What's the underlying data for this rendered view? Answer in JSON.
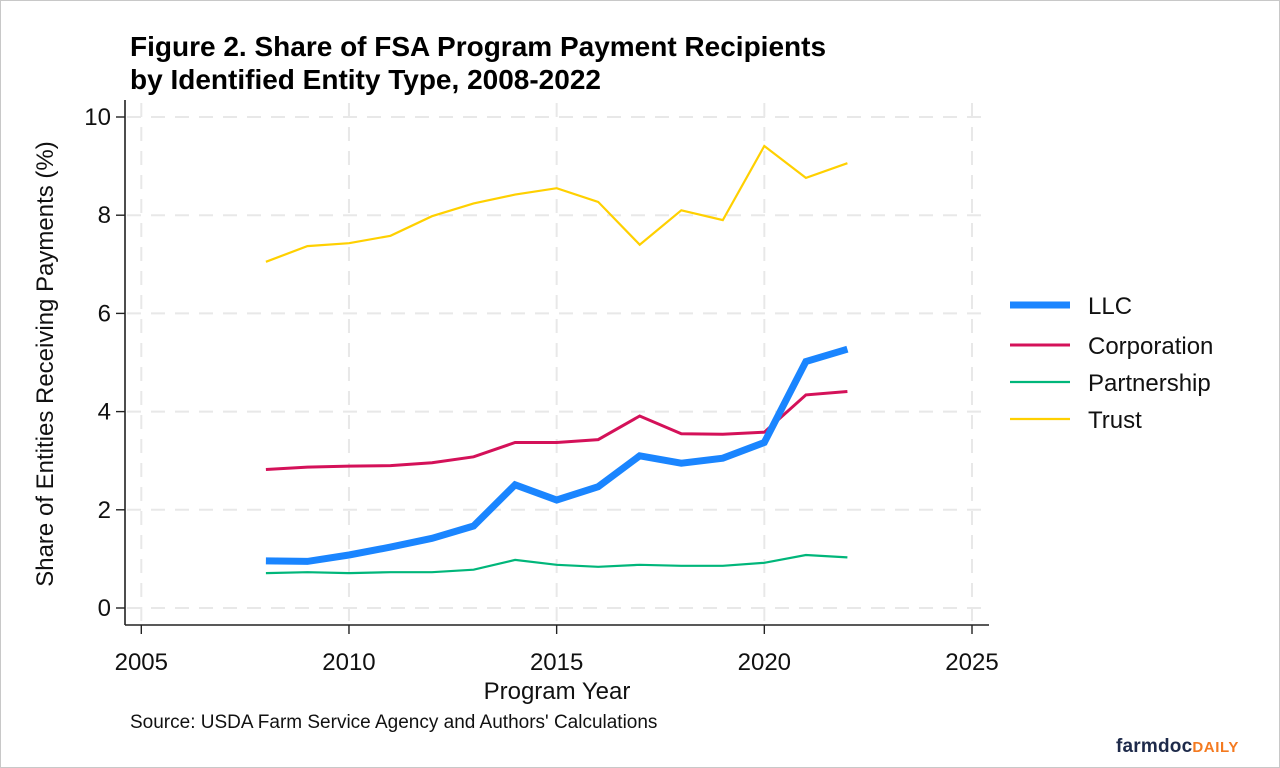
{
  "chart_data": {
    "type": "line",
    "title": "Figure 2. Share of FSA Program Payment Recipients by Identified Entity Type, 2008-2022",
    "title_lines": [
      "Figure 2. Share of FSA Program Payment Recipients",
      "by Identified Entity Type, 2008-2022"
    ],
    "xlabel": "Program Year",
    "ylabel": "Share of Entities Receiving Payments (%)",
    "x": [
      2008,
      2009,
      2010,
      2011,
      2012,
      2013,
      2014,
      2015,
      2016,
      2017,
      2018,
      2019,
      2020,
      2021,
      2022
    ],
    "xlim": [
      2004.6,
      2025.4
    ],
    "ylim": [
      -0.35,
      10.35
    ],
    "xticks": [
      2005,
      2010,
      2015,
      2020,
      2025
    ],
    "xtick_labels": [
      "2005",
      "2010",
      "2015",
      "2020",
      "2025"
    ],
    "yticks": [
      0,
      2,
      4,
      6,
      8,
      10
    ],
    "ytick_labels": [
      "0",
      "2",
      "4",
      "6",
      "8",
      "10"
    ],
    "grid": true,
    "legend_position": "right",
    "series": [
      {
        "name": "LLC",
        "color": "#1a85ff",
        "weight": "thick",
        "values": [
          0.96,
          0.95,
          1.08,
          1.24,
          1.42,
          1.67,
          2.51,
          2.2,
          2.47,
          3.1,
          2.95,
          3.05,
          3.37,
          5.02,
          5.27
        ]
      },
      {
        "name": "Corporation",
        "color": "#d41159",
        "weight": "medium",
        "values": [
          2.82,
          2.87,
          2.89,
          2.9,
          2.96,
          3.08,
          3.37,
          3.37,
          3.43,
          3.91,
          3.55,
          3.54,
          3.58,
          4.34,
          4.41
        ]
      },
      {
        "name": "Partnership",
        "color": "#00b67a",
        "weight": "thin",
        "values": [
          0.71,
          0.73,
          0.71,
          0.73,
          0.73,
          0.78,
          0.98,
          0.88,
          0.84,
          0.88,
          0.86,
          0.86,
          0.92,
          1.08,
          1.03
        ]
      },
      {
        "name": "Trust",
        "color": "#ffd000",
        "weight": "thin",
        "values": [
          7.05,
          7.37,
          7.43,
          7.58,
          7.98,
          8.24,
          8.42,
          8.55,
          8.27,
          7.4,
          8.1,
          7.9,
          9.41,
          8.76,
          9.06
        ]
      }
    ]
  },
  "source_note": "Source: USDA Farm Service Agency and Authors' Calculations",
  "logo": {
    "part1": "farmdoc",
    "part2": "DAILY"
  }
}
